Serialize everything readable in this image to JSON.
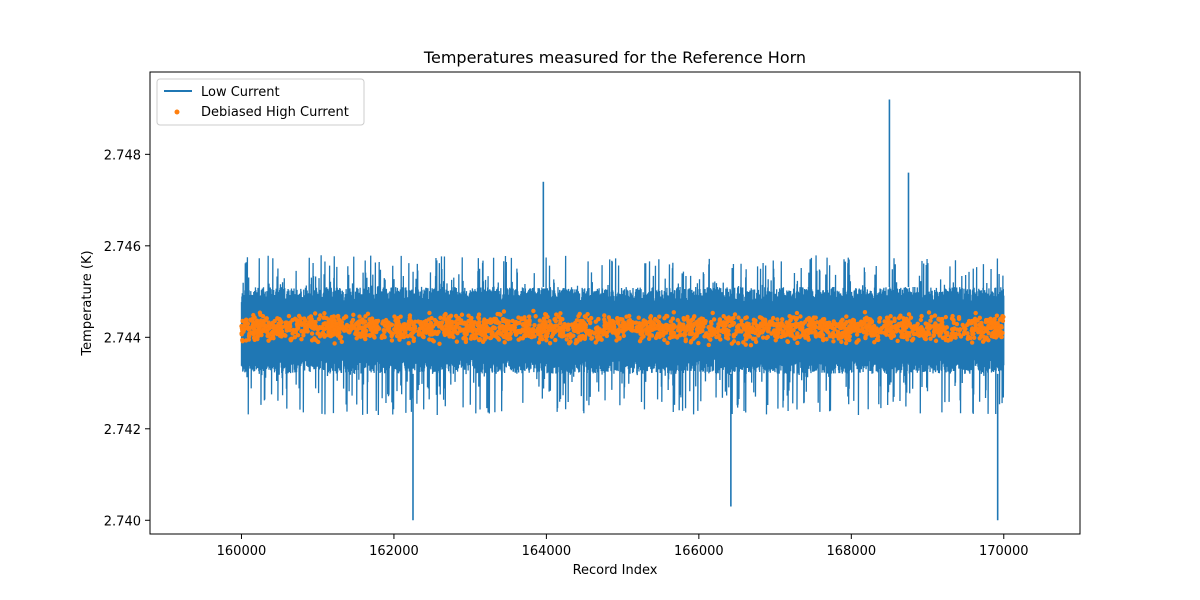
{
  "chart_data": {
    "type": "line",
    "title": "Temperatures measured for the Reference Horn",
    "xlabel": "Record Index",
    "ylabel": "Temperature (K)",
    "xlim": [
      158800,
      171000
    ],
    "ylim": [
      2.7397,
      2.7498
    ],
    "x_ticks": [
      160000,
      162000,
      164000,
      166000,
      168000,
      170000
    ],
    "x_tick_labels": [
      "160000",
      "162000",
      "164000",
      "166000",
      "168000",
      "170000"
    ],
    "y_ticks": [
      2.74,
      2.742,
      2.744,
      2.746,
      2.748
    ],
    "y_tick_labels": [
      "2.740",
      "2.742",
      "2.744",
      "2.746",
      "2.748"
    ],
    "legend_position": "top-left",
    "series": [
      {
        "name": "Low Current",
        "kind": "line",
        "color": "#1f77b4",
        "x_start": 160000,
        "x_end": 170000,
        "band": [
          2.7432,
          2.7451
        ],
        "typical_range": [
          2.7423,
          2.7458
        ],
        "extremes": [
          {
            "x": 162250,
            "y": 2.74
          },
          {
            "x": 163960,
            "y": 2.7474
          },
          {
            "x": 166420,
            "y": 2.7403
          },
          {
            "x": 168500,
            "y": 2.7492
          },
          {
            "x": 168750,
            "y": 2.7476
          },
          {
            "x": 169920,
            "y": 2.74
          }
        ]
      },
      {
        "name": "Debiased High Current",
        "kind": "scatter",
        "color": "#ff7f0e",
        "x_start": 160000,
        "x_end": 170000,
        "center": 2.7442,
        "spread": [
          2.7439,
          2.7446
        ]
      }
    ]
  }
}
